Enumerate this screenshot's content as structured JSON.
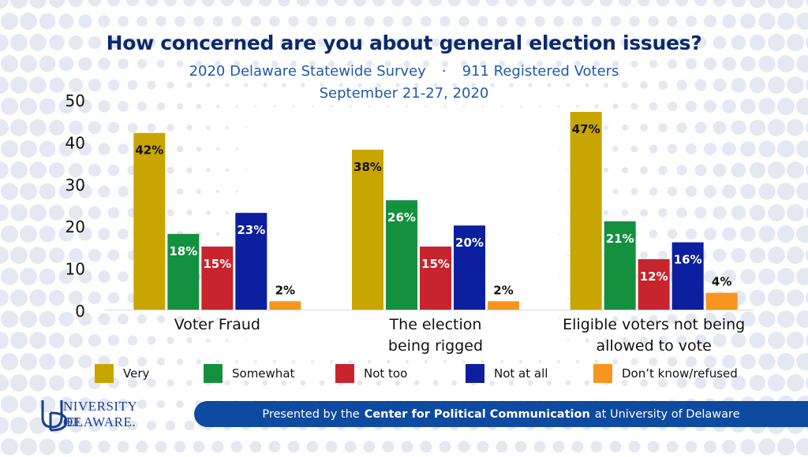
{
  "header": {
    "title": "How concerned are you about general election issues?",
    "subtitle_left": "2020 Delaware Statewide Survey",
    "subtitle_sep": "·",
    "subtitle_right": "911 Registered Voters",
    "subtitle_dates": "September 21-27, 2020"
  },
  "chart_data": {
    "type": "bar",
    "categories": [
      [
        "Voter Fraud"
      ],
      [
        "The election",
        "being rigged"
      ],
      [
        "Eligible voters not being",
        "allowed to vote"
      ]
    ],
    "series": [
      {
        "name": "Very",
        "color": "#c9a500",
        "values": [
          42,
          38,
          47
        ],
        "labels": [
          "42%",
          "38%",
          "47%"
        ]
      },
      {
        "name": "Somewhat",
        "color": "#14913f",
        "values": [
          18,
          26,
          21
        ],
        "labels": [
          "18%",
          "26%",
          "21%"
        ]
      },
      {
        "name": "Not too",
        "color": "#c8242e",
        "values": [
          15,
          15,
          12
        ],
        "labels": [
          "15%",
          "15%",
          "12%"
        ]
      },
      {
        "name": "Not at all",
        "color": "#0c1f9e",
        "values": [
          23,
          20,
          16
        ],
        "labels": [
          "23%",
          "20%",
          "16%"
        ]
      },
      {
        "name": "Don’t know/refused",
        "color": "#f7951e",
        "values": [
          2,
          2,
          4
        ],
        "labels": [
          "2%",
          "2%",
          "4%"
        ]
      }
    ],
    "yticks": [
      "0",
      "10",
      "20",
      "30",
      "40",
      "50"
    ],
    "ylim": [
      0,
      50
    ],
    "grid": false,
    "legend_position": "bottom"
  },
  "logo": {
    "line1": "NIVERSITY OF",
    "line2": "ELAWARE.",
    "monogram": "UD"
  },
  "footer": {
    "prefix": "Presented by the",
    "bold": "Center for Political Communication",
    "suffix": "at University of Delaware"
  }
}
